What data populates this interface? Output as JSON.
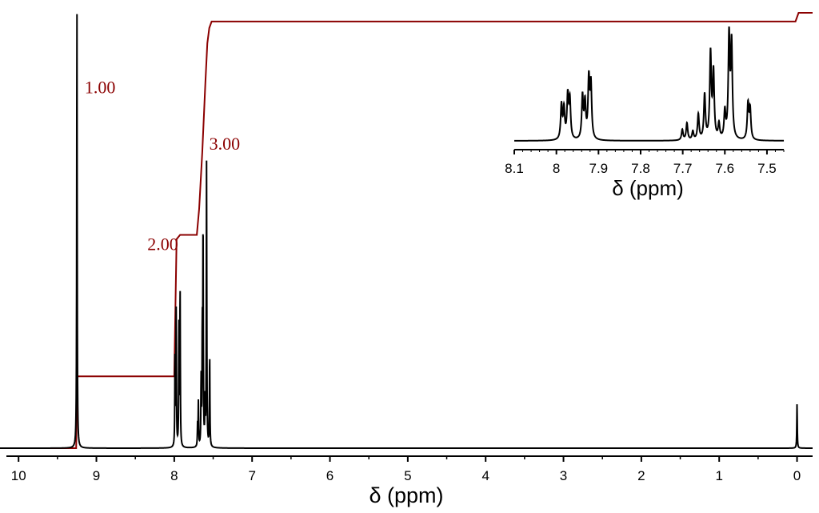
{
  "chart_data": [
    {
      "type": "line",
      "xlabel": "δ (ppm)",
      "xlim": [
        10.3,
        -0.2
      ],
      "x_reversed": true,
      "ylim": [
        0,
        1
      ],
      "x_ticks": [
        10,
        9,
        8,
        7,
        6,
        5,
        4,
        3,
        2,
        1,
        0
      ],
      "tick_labels": [
        "10",
        "9",
        "8",
        "7",
        "6",
        "5",
        "4",
        "3",
        "2",
        "1",
        "0"
      ],
      "spectrum": {
        "color": "#000000",
        "peaks": [
          {
            "ppm": 9.25,
            "height": 1.0,
            "width": 0.0035
          },
          {
            "ppm": 7.99,
            "height": 0.21,
            "width": 0.0035
          },
          {
            "ppm": 7.975,
            "height": 0.31,
            "width": 0.0035
          },
          {
            "ppm": 7.94,
            "height": 0.27,
            "width": 0.0035
          },
          {
            "ppm": 7.925,
            "height": 0.36,
            "width": 0.0035
          },
          {
            "ppm": 7.7,
            "height": 0.05,
            "width": 0.0035
          },
          {
            "ppm": 7.69,
            "height": 0.1,
            "width": 0.0035
          },
          {
            "ppm": 7.655,
            "height": 0.15,
            "width": 0.0035
          },
          {
            "ppm": 7.64,
            "height": 0.26,
            "width": 0.0035
          },
          {
            "ppm": 7.63,
            "height": 0.5,
            "width": 0.0035
          },
          {
            "ppm": 7.605,
            "height": 0.1,
            "width": 0.0035
          },
          {
            "ppm": 7.585,
            "height": 0.64,
            "width": 0.0035
          },
          {
            "ppm": 7.545,
            "height": 0.21,
            "width": 0.0035
          },
          {
            "ppm": 0.0,
            "height": 0.1,
            "width": 0.0035
          }
        ]
      },
      "integral": {
        "color": "#8b0000",
        "points": [
          [
            10.3,
            0.0
          ],
          [
            9.26,
            0.0
          ],
          [
            9.245,
            0.165
          ],
          [
            8.0,
            0.165
          ],
          [
            7.97,
            0.48
          ],
          [
            7.925,
            0.49
          ],
          [
            7.71,
            0.49
          ],
          [
            7.68,
            0.55
          ],
          [
            7.64,
            0.68
          ],
          [
            7.6,
            0.84
          ],
          [
            7.575,
            0.93
          ],
          [
            7.55,
            0.965
          ],
          [
            7.52,
            0.98
          ],
          [
            0.02,
            0.98
          ],
          [
            -0.02,
            1.0
          ],
          [
            -0.2,
            1.0
          ]
        ]
      },
      "annotations": [
        {
          "text": "1.00",
          "ppm": 9.15,
          "y": 0.83
        },
        {
          "text": "3.00",
          "ppm": 7.55,
          "y": 0.7
        },
        {
          "text": "2.00",
          "ppm": 7.95,
          "y": 0.47
        }
      ]
    },
    {
      "type": "line",
      "xlabel": "δ (ppm)",
      "xlim": [
        8.1,
        7.46
      ],
      "x_reversed": true,
      "ylim": [
        0,
        1
      ],
      "x_ticks": [
        8.1,
        8.0,
        7.9,
        7.8,
        7.7,
        7.6,
        7.5
      ],
      "tick_labels": [
        "8.1",
        "8",
        "7.9",
        "7.8",
        "7.7",
        "7.6",
        "7.5"
      ],
      "spectrum": {
        "color": "#000000",
        "peaks": [
          {
            "ppm": 7.988,
            "height": 0.32,
            "width": 0.0022
          },
          {
            "ppm": 7.982,
            "height": 0.28,
            "width": 0.0022
          },
          {
            "ppm": 7.973,
            "height": 0.4,
            "width": 0.0022
          },
          {
            "ppm": 7.968,
            "height": 0.36,
            "width": 0.0022
          },
          {
            "ppm": 7.938,
            "height": 0.4,
            "width": 0.0022
          },
          {
            "ppm": 7.932,
            "height": 0.33,
            "width": 0.0022
          },
          {
            "ppm": 7.923,
            "height": 0.55,
            "width": 0.0022
          },
          {
            "ppm": 7.918,
            "height": 0.5,
            "width": 0.0022
          },
          {
            "ppm": 7.701,
            "height": 0.1,
            "width": 0.0022
          },
          {
            "ppm": 7.69,
            "height": 0.16,
            "width": 0.0022
          },
          {
            "ppm": 7.676,
            "height": 0.08,
            "width": 0.0022
          },
          {
            "ppm": 7.663,
            "height": 0.24,
            "width": 0.0022
          },
          {
            "ppm": 7.648,
            "height": 0.42,
            "width": 0.0022
          },
          {
            "ppm": 7.634,
            "height": 0.8,
            "width": 0.0022
          },
          {
            "ppm": 7.627,
            "height": 0.62,
            "width": 0.0022
          },
          {
            "ppm": 7.614,
            "height": 0.14,
            "width": 0.0022
          },
          {
            "ppm": 7.6,
            "height": 0.25,
            "width": 0.0022
          },
          {
            "ppm": 7.59,
            "height": 0.95,
            "width": 0.0022
          },
          {
            "ppm": 7.584,
            "height": 0.88,
            "width": 0.0022
          },
          {
            "ppm": 7.545,
            "height": 0.33,
            "width": 0.0022
          },
          {
            "ppm": 7.54,
            "height": 0.28,
            "width": 0.0022
          }
        ]
      }
    }
  ]
}
